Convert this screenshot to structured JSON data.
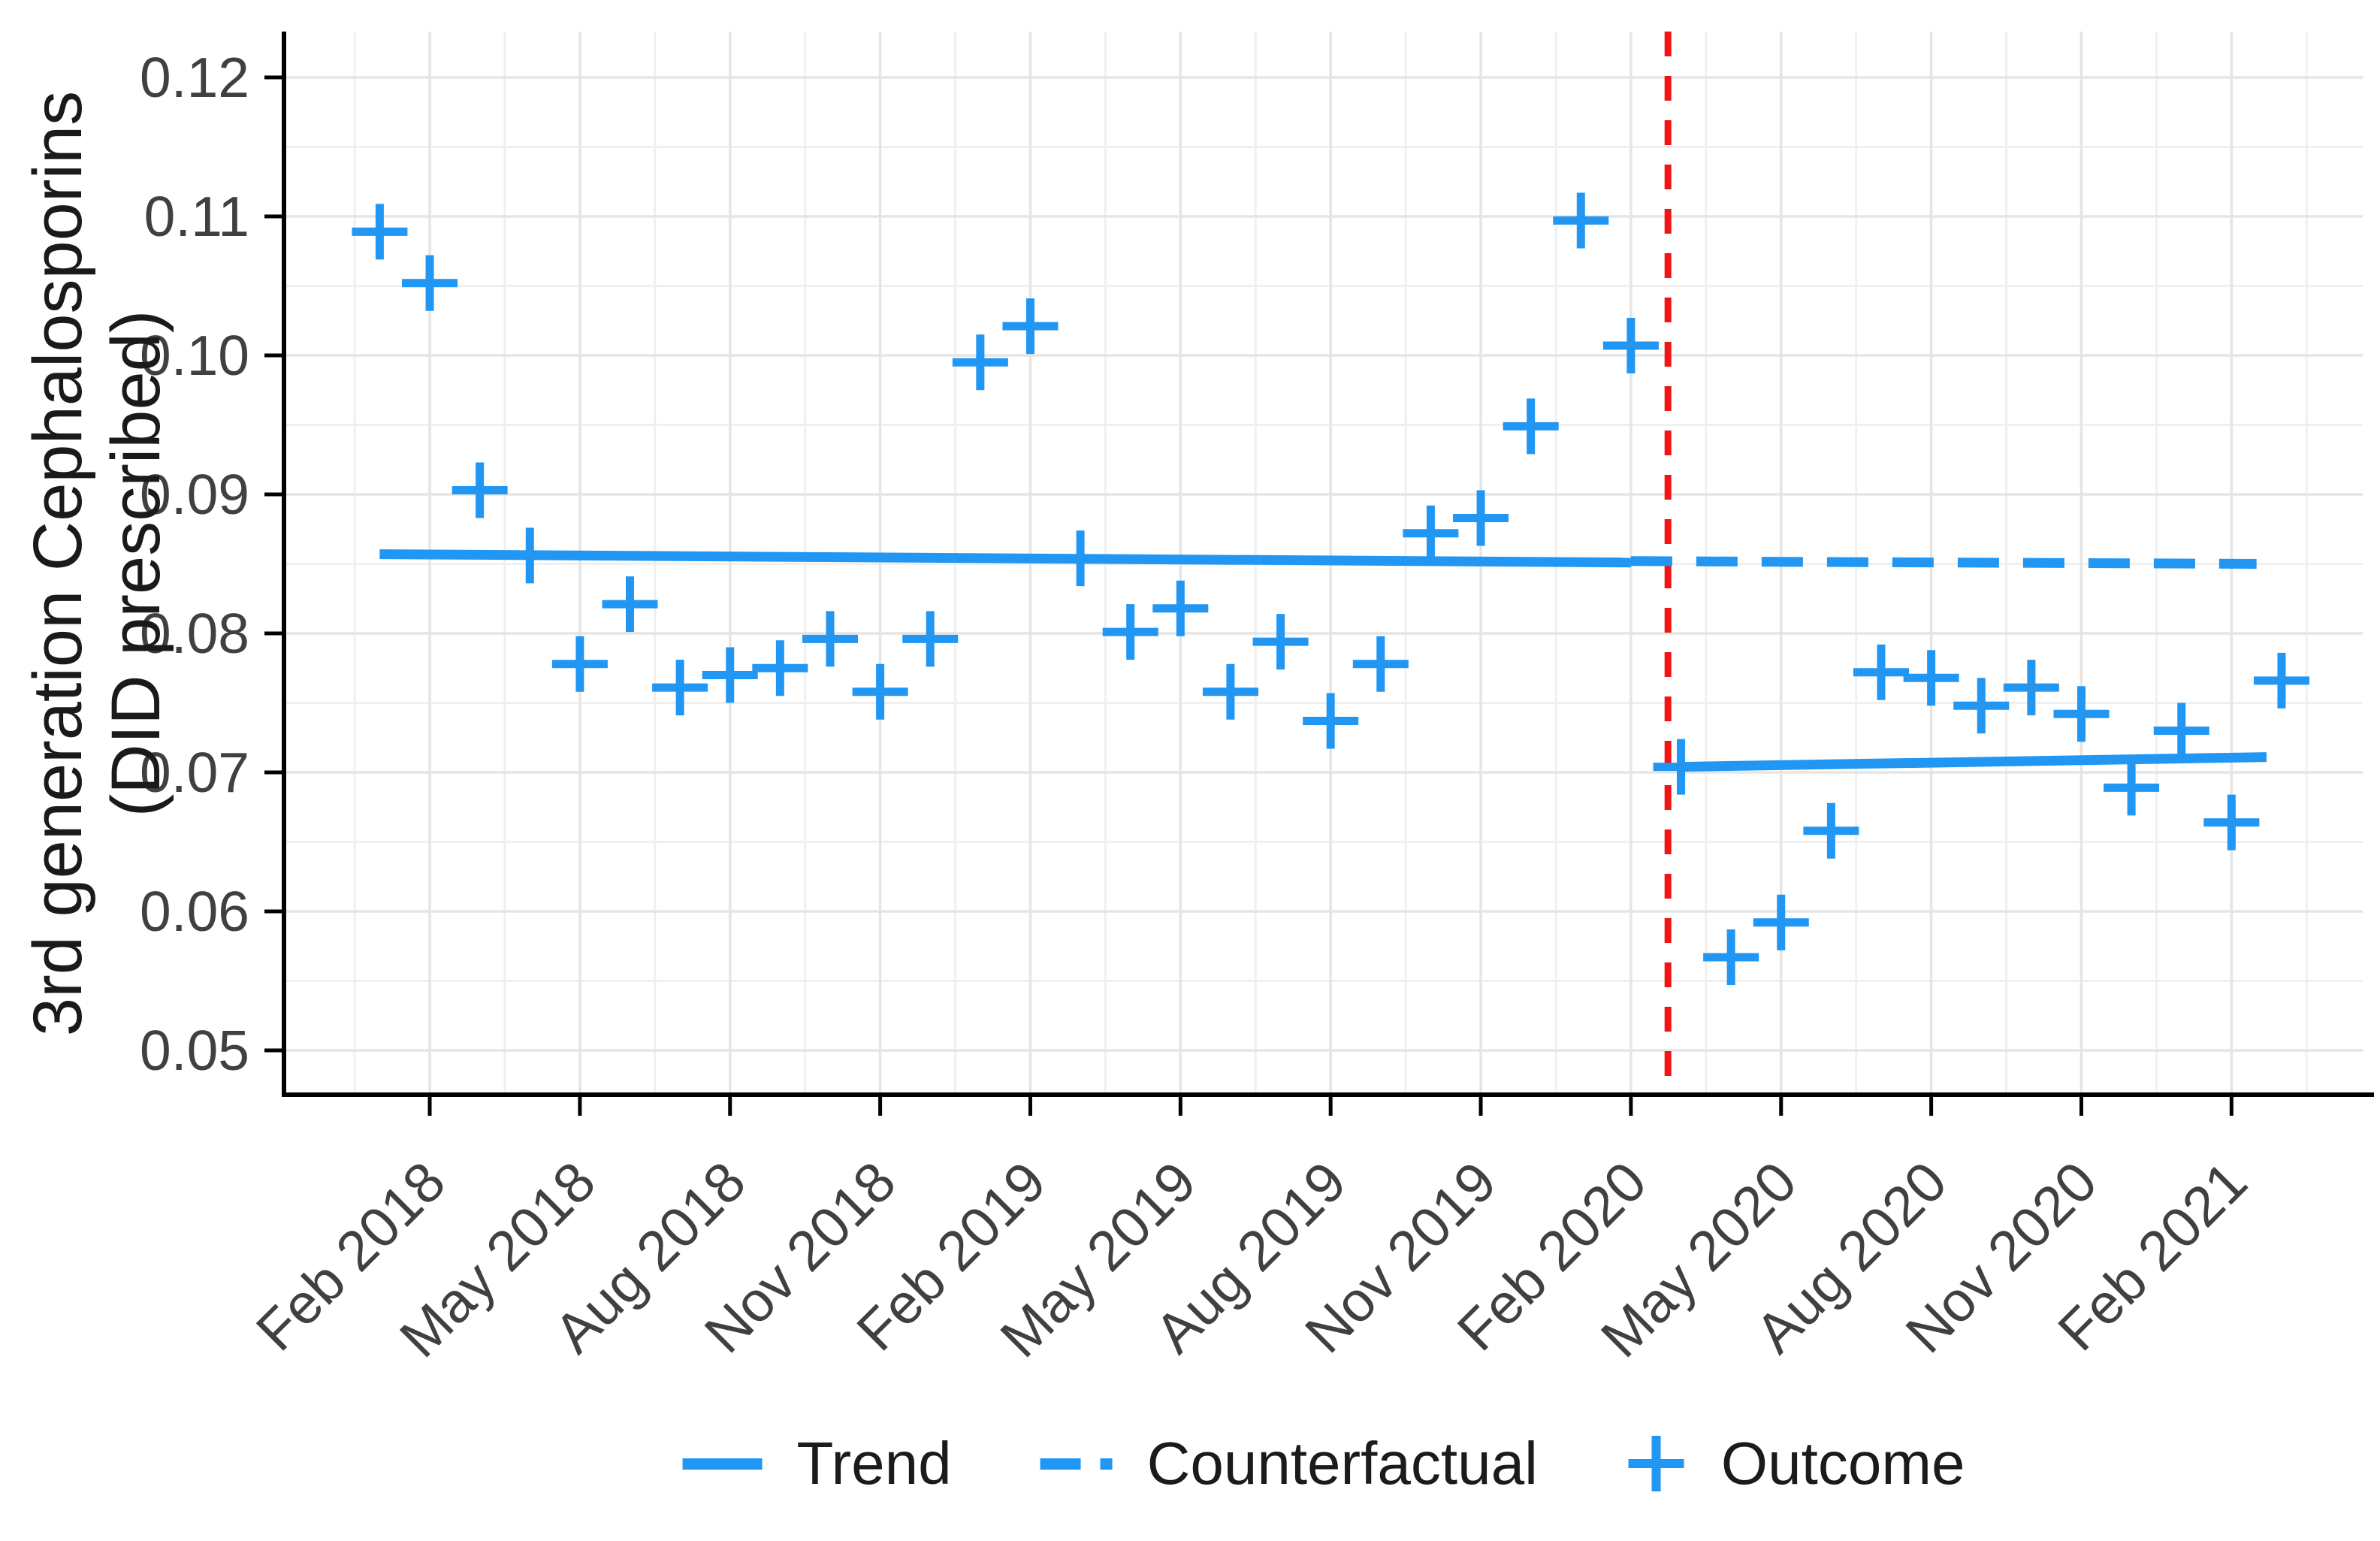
{
  "legend": {
    "items": [
      {
        "swatch": "solid-line-swatch",
        "label": "Trend"
      },
      {
        "swatch": "dashed-line-swatch",
        "label": "Counterfactual"
      },
      {
        "swatch": "plus-marker-swatch",
        "label": "Outcome"
      }
    ]
  },
  "chart_data": {
    "type": "scatter",
    "title": "",
    "xlabel": "",
    "ylabel": "3rd generation Cephalosporins (DID prescribed)",
    "ylabel_lines": [
      "3rd generation Cephalosporins",
      "(DID prescribed)"
    ],
    "ylim": [
      0.047,
      0.123
    ],
    "grid": true,
    "legend_position": "bottom",
    "y_ticks": [
      0.05,
      0.06,
      0.07,
      0.08,
      0.09,
      0.1,
      0.11,
      0.12
    ],
    "x_tick_labels": [
      {
        "label": "Feb 2018",
        "month_index": 1
      },
      {
        "label": "May 2018",
        "month_index": 4
      },
      {
        "label": "Aug 2018",
        "month_index": 7
      },
      {
        "label": "Nov 2018",
        "month_index": 10
      },
      {
        "label": "Feb 2019",
        "month_index": 13
      },
      {
        "label": "May 2019",
        "month_index": 16
      },
      {
        "label": "Aug 2019",
        "month_index": 19
      },
      {
        "label": "Nov 2019",
        "month_index": 22
      },
      {
        "label": "Feb 2020",
        "month_index": 25
      },
      {
        "label": "May 2020",
        "month_index": 28
      },
      {
        "label": "Aug 2020",
        "month_index": 31
      },
      {
        "label": "Nov 2020",
        "month_index": 34
      },
      {
        "label": "Feb 2021",
        "month_index": 37
      }
    ],
    "points": [
      {
        "label": "Jan 2018",
        "value": 0.1089
      },
      {
        "label": "Feb 2018",
        "value": 0.1052
      },
      {
        "label": "Mar 2018",
        "value": 0.0903
      },
      {
        "label": "Apr 2018",
        "value": 0.0856
      },
      {
        "label": "May 2018",
        "value": 0.0778
      },
      {
        "label": "Jun 2018",
        "value": 0.0821
      },
      {
        "label": "Jul 2018",
        "value": 0.0761
      },
      {
        "label": "Aug 2018",
        "value": 0.077
      },
      {
        "label": "Sep 2018",
        "value": 0.0775
      },
      {
        "label": "Oct 2018",
        "value": 0.0796
      },
      {
        "label": "Nov 2018",
        "value": 0.0758
      },
      {
        "label": "Dec 2018",
        "value": 0.0796
      },
      {
        "label": "Jan 2019",
        "value": 0.0995
      },
      {
        "label": "Feb 2019",
        "value": 0.1021
      },
      {
        "label": "Mar 2019",
        "value": 0.0854
      },
      {
        "label": "Apr 2019",
        "value": 0.0801
      },
      {
        "label": "May 2019",
        "value": 0.0818
      },
      {
        "label": "Jun 2019",
        "value": 0.0758
      },
      {
        "label": "Jul 2019",
        "value": 0.0794
      },
      {
        "label": "Aug 2019",
        "value": 0.0737
      },
      {
        "label": "Sep 2019",
        "value": 0.0778
      },
      {
        "label": "Oct 2019",
        "value": 0.0872
      },
      {
        "label": "Nov 2019",
        "value": 0.0883
      },
      {
        "label": "Dec 2019",
        "value": 0.0949
      },
      {
        "label": "Jan 2020",
        "value": 0.1097
      },
      {
        "label": "Feb 2020",
        "value": 0.1007
      },
      {
        "label": "Mar 2020",
        "value": 0.0704
      },
      {
        "label": "Apr 2020",
        "value": 0.0567
      },
      {
        "label": "May 2020",
        "value": 0.0592
      },
      {
        "label": "Jun 2020",
        "value": 0.0658
      },
      {
        "label": "Jul 2020",
        "value": 0.0772
      },
      {
        "label": "Aug 2020",
        "value": 0.0768
      },
      {
        "label": "Sep 2020",
        "value": 0.0748
      },
      {
        "label": "Oct 2020",
        "value": 0.0761
      },
      {
        "label": "Nov 2020",
        "value": 0.0742
      },
      {
        "label": "Dec 2020",
        "value": 0.0689
      },
      {
        "label": "Jan 2021",
        "value": 0.073
      },
      {
        "label": "Feb 2021",
        "value": 0.0664
      },
      {
        "label": "Mar 2021",
        "value": 0.0766
      }
    ],
    "trend_pre": {
      "x0": 0,
      "v0": 0.0857,
      "x1": 25,
      "v1": 0.0851,
      "style": "solid",
      "name": "Trend"
    },
    "counterfactual": {
      "x0": 25,
      "v0": 0.0852,
      "x1": 37.5,
      "v1": 0.085,
      "style": "dashed",
      "name": "Counterfactual"
    },
    "trend_post": {
      "x0": 26,
      "v0": 0.0704,
      "x1": 37.7,
      "v1": 0.0711,
      "style": "solid",
      "name": "Trend"
    },
    "intervention_line": {
      "month_index": 25.74,
      "style": "dashed-vertical"
    },
    "colors": {
      "series_blue": "#2196F3",
      "intervention_red": "#F01414",
      "grid_major": "#E5E5E5",
      "grid_minor": "#F0F0F0",
      "axis": "#000000",
      "tick_text": "#404040",
      "title_text": "#1a1a1a"
    }
  }
}
